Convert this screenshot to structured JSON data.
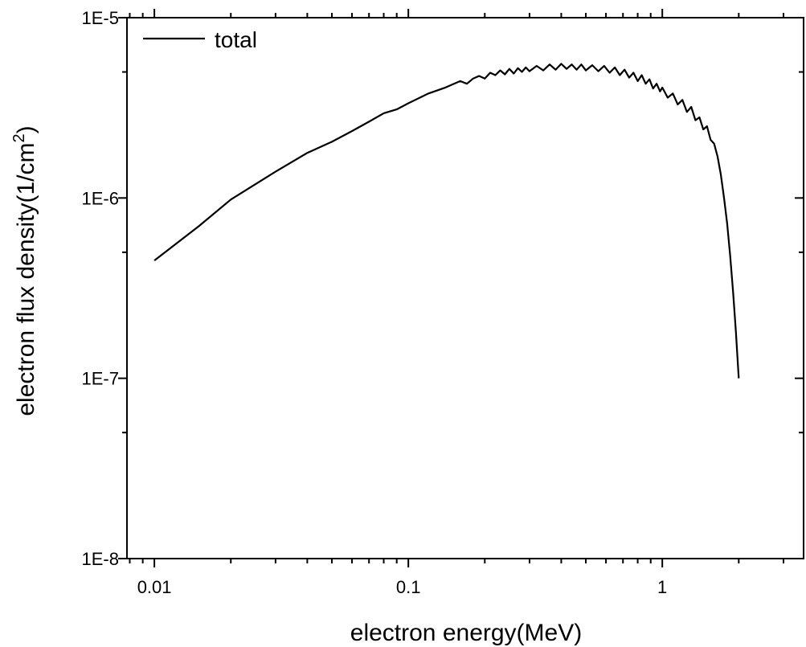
{
  "chart_data": {
    "type": "line",
    "xlabel": "electron energy(MeV)",
    "ylabel_main": "electron flux density(1/cm",
    "ylabel_sup": "2",
    "ylabel_close": ")",
    "x_scale": "log",
    "y_scale": "log",
    "xlim": [
      0.0078,
      3.6
    ],
    "ylim": [
      1e-08,
      1e-05
    ],
    "x_ticks": [
      {
        "value": 0.01,
        "label": "0.01"
      },
      {
        "value": 0.1,
        "label": "0.1"
      },
      {
        "value": 1,
        "label": "1"
      }
    ],
    "y_ticks": [
      {
        "value": 1e-08,
        "label": "1E-8"
      },
      {
        "value": 1e-07,
        "label": "1E-7"
      },
      {
        "value": 1e-06,
        "label": "1E-6"
      },
      {
        "value": 1e-05,
        "label": "1E-5"
      }
    ],
    "grid": false,
    "legend": {
      "position": "top-left"
    },
    "series": [
      {
        "name": "total",
        "color": "#000000",
        "x": [
          0.01,
          0.015,
          0.02,
          0.03,
          0.04,
          0.05,
          0.06,
          0.07,
          0.08,
          0.09,
          0.1,
          0.12,
          0.14,
          0.16,
          0.17,
          0.18,
          0.19,
          0.2,
          0.21,
          0.22,
          0.23,
          0.24,
          0.25,
          0.26,
          0.27,
          0.28,
          0.29,
          0.3,
          0.32,
          0.34,
          0.36,
          0.38,
          0.4,
          0.42,
          0.44,
          0.46,
          0.48,
          0.5,
          0.53,
          0.56,
          0.59,
          0.62,
          0.65,
          0.68,
          0.71,
          0.74,
          0.77,
          0.8,
          0.83,
          0.86,
          0.89,
          0.92,
          0.95,
          0.98,
          1.0,
          1.05,
          1.1,
          1.15,
          1.2,
          1.25,
          1.3,
          1.35,
          1.4,
          1.45,
          1.5,
          1.55,
          1.6,
          1.65,
          1.7,
          1.75,
          1.8,
          1.85,
          1.9,
          1.95,
          2.0
        ],
        "values": [
          4.5e-07,
          7e-07,
          9.8e-07,
          1.4e-06,
          1.78e-06,
          2.05e-06,
          2.35e-06,
          2.65e-06,
          2.95e-06,
          3.1e-06,
          3.35e-06,
          3.8e-06,
          4.1e-06,
          4.45e-06,
          4.3e-06,
          4.6e-06,
          4.75e-06,
          4.6e-06,
          4.95e-06,
          4.8e-06,
          5.1e-06,
          4.85e-06,
          5.2e-06,
          4.9e-06,
          5.25e-06,
          5e-06,
          5.3e-06,
          5.05e-06,
          5.4e-06,
          5.1e-06,
          5.5e-06,
          5.15e-06,
          5.55e-06,
          5.2e-06,
          5.5e-06,
          5.15e-06,
          5.5e-06,
          5.1e-06,
          5.45e-06,
          5.05e-06,
          5.4e-06,
          4.95e-06,
          5.3e-06,
          4.8e-06,
          5.15e-06,
          4.65e-06,
          4.95e-06,
          4.45e-06,
          4.8e-06,
          4.3e-06,
          4.55e-06,
          4.05e-06,
          4.3e-06,
          3.9e-06,
          4.1e-06,
          3.6e-06,
          3.8e-06,
          3.3e-06,
          3.5e-06,
          3e-06,
          3.2e-06,
          2.7e-06,
          2.8e-06,
          2.4e-06,
          2.5e-06,
          2.1e-06,
          2e-06,
          1.7e-06,
          1.35e-06,
          1e-06,
          7.2e-07,
          4.8e-07,
          3e-07,
          1.8e-07,
          1e-07
        ]
      }
    ]
  }
}
